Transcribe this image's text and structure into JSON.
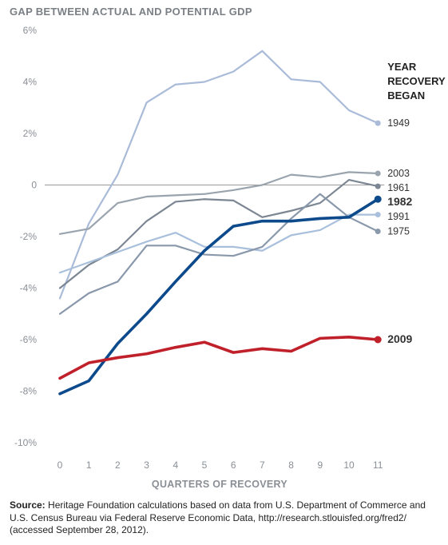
{
  "chart_data": {
    "type": "line",
    "title": "GAP BETWEEN ACTUAL AND POTENTIAL GDP",
    "xlabel": "QUARTERS OF RECOVERY",
    "ylabel": "",
    "x": [
      0,
      1,
      2,
      3,
      4,
      5,
      6,
      7,
      8,
      9,
      10,
      11
    ],
    "ylim": [
      -10,
      6
    ],
    "yticks": [
      6,
      4,
      2,
      0,
      -2,
      -4,
      -6,
      -8,
      -10
    ],
    "ytick_labels": [
      "6%",
      "4%",
      "2%",
      "0",
      "-2%",
      "-4%",
      "-6%",
      "-8%",
      "-10%"
    ],
    "legend_title": [
      "YEAR",
      "RECOVERY",
      "BEGAN"
    ],
    "series": [
      {
        "name": "1949",
        "color": "#a9bbd8",
        "highlight": false,
        "values": [
          -4.4,
          -1.5,
          0.4,
          3.2,
          3.9,
          4.0,
          4.4,
          5.2,
          4.1,
          4.0,
          2.9,
          2.4
        ]
      },
      {
        "name": "2003",
        "color": "#9aa4ae",
        "highlight": false,
        "values": [
          -1.9,
          -1.7,
          -0.7,
          -0.45,
          -0.4,
          -0.35,
          -0.2,
          0.0,
          0.4,
          0.3,
          0.5,
          0.45
        ]
      },
      {
        "name": "1961",
        "color": "#7c8793",
        "highlight": false,
        "values": [
          -4.0,
          -3.1,
          -2.5,
          -1.4,
          -0.65,
          -0.55,
          -0.6,
          -1.25,
          -1.0,
          -0.7,
          0.2,
          -0.05
        ]
      },
      {
        "name": "1991",
        "color": "#a9c0dc",
        "highlight": false,
        "values": [
          -3.4,
          -3.0,
          -2.6,
          -2.2,
          -1.85,
          -2.4,
          -2.4,
          -2.55,
          -1.95,
          -1.75,
          -1.15,
          -1.15
        ]
      },
      {
        "name": "1975",
        "color": "#8a98ab",
        "highlight": false,
        "values": [
          -5.0,
          -4.2,
          -3.75,
          -2.35,
          -2.35,
          -2.7,
          -2.75,
          -2.4,
          -1.3,
          -0.35,
          -1.25,
          -1.8
        ]
      },
      {
        "name": "1982",
        "color": "#0d4a8c",
        "highlight": true,
        "values": [
          -8.1,
          -7.6,
          -6.15,
          -5.0,
          -3.75,
          -2.55,
          -1.6,
          -1.4,
          -1.4,
          -1.3,
          -1.25,
          -0.55
        ]
      },
      {
        "name": "2009",
        "color": "#c0202a",
        "highlight": true,
        "values": [
          -7.5,
          -6.9,
          -6.7,
          -6.55,
          -6.3,
          -6.1,
          -6.5,
          -6.35,
          -6.45,
          -5.95,
          -5.9,
          -6.0
        ]
      }
    ],
    "grid": false,
    "legend_position": "right, labels at line ends"
  },
  "source": {
    "label": "Source:",
    "text": " Heritage Foundation calculations based on data from U.S. Department of Commerce and U.S.  Census Bureau via Federal Reserve Economic Data, http://research.stlouisfed.org/fred2/ (accessed September 28, 2012)."
  }
}
